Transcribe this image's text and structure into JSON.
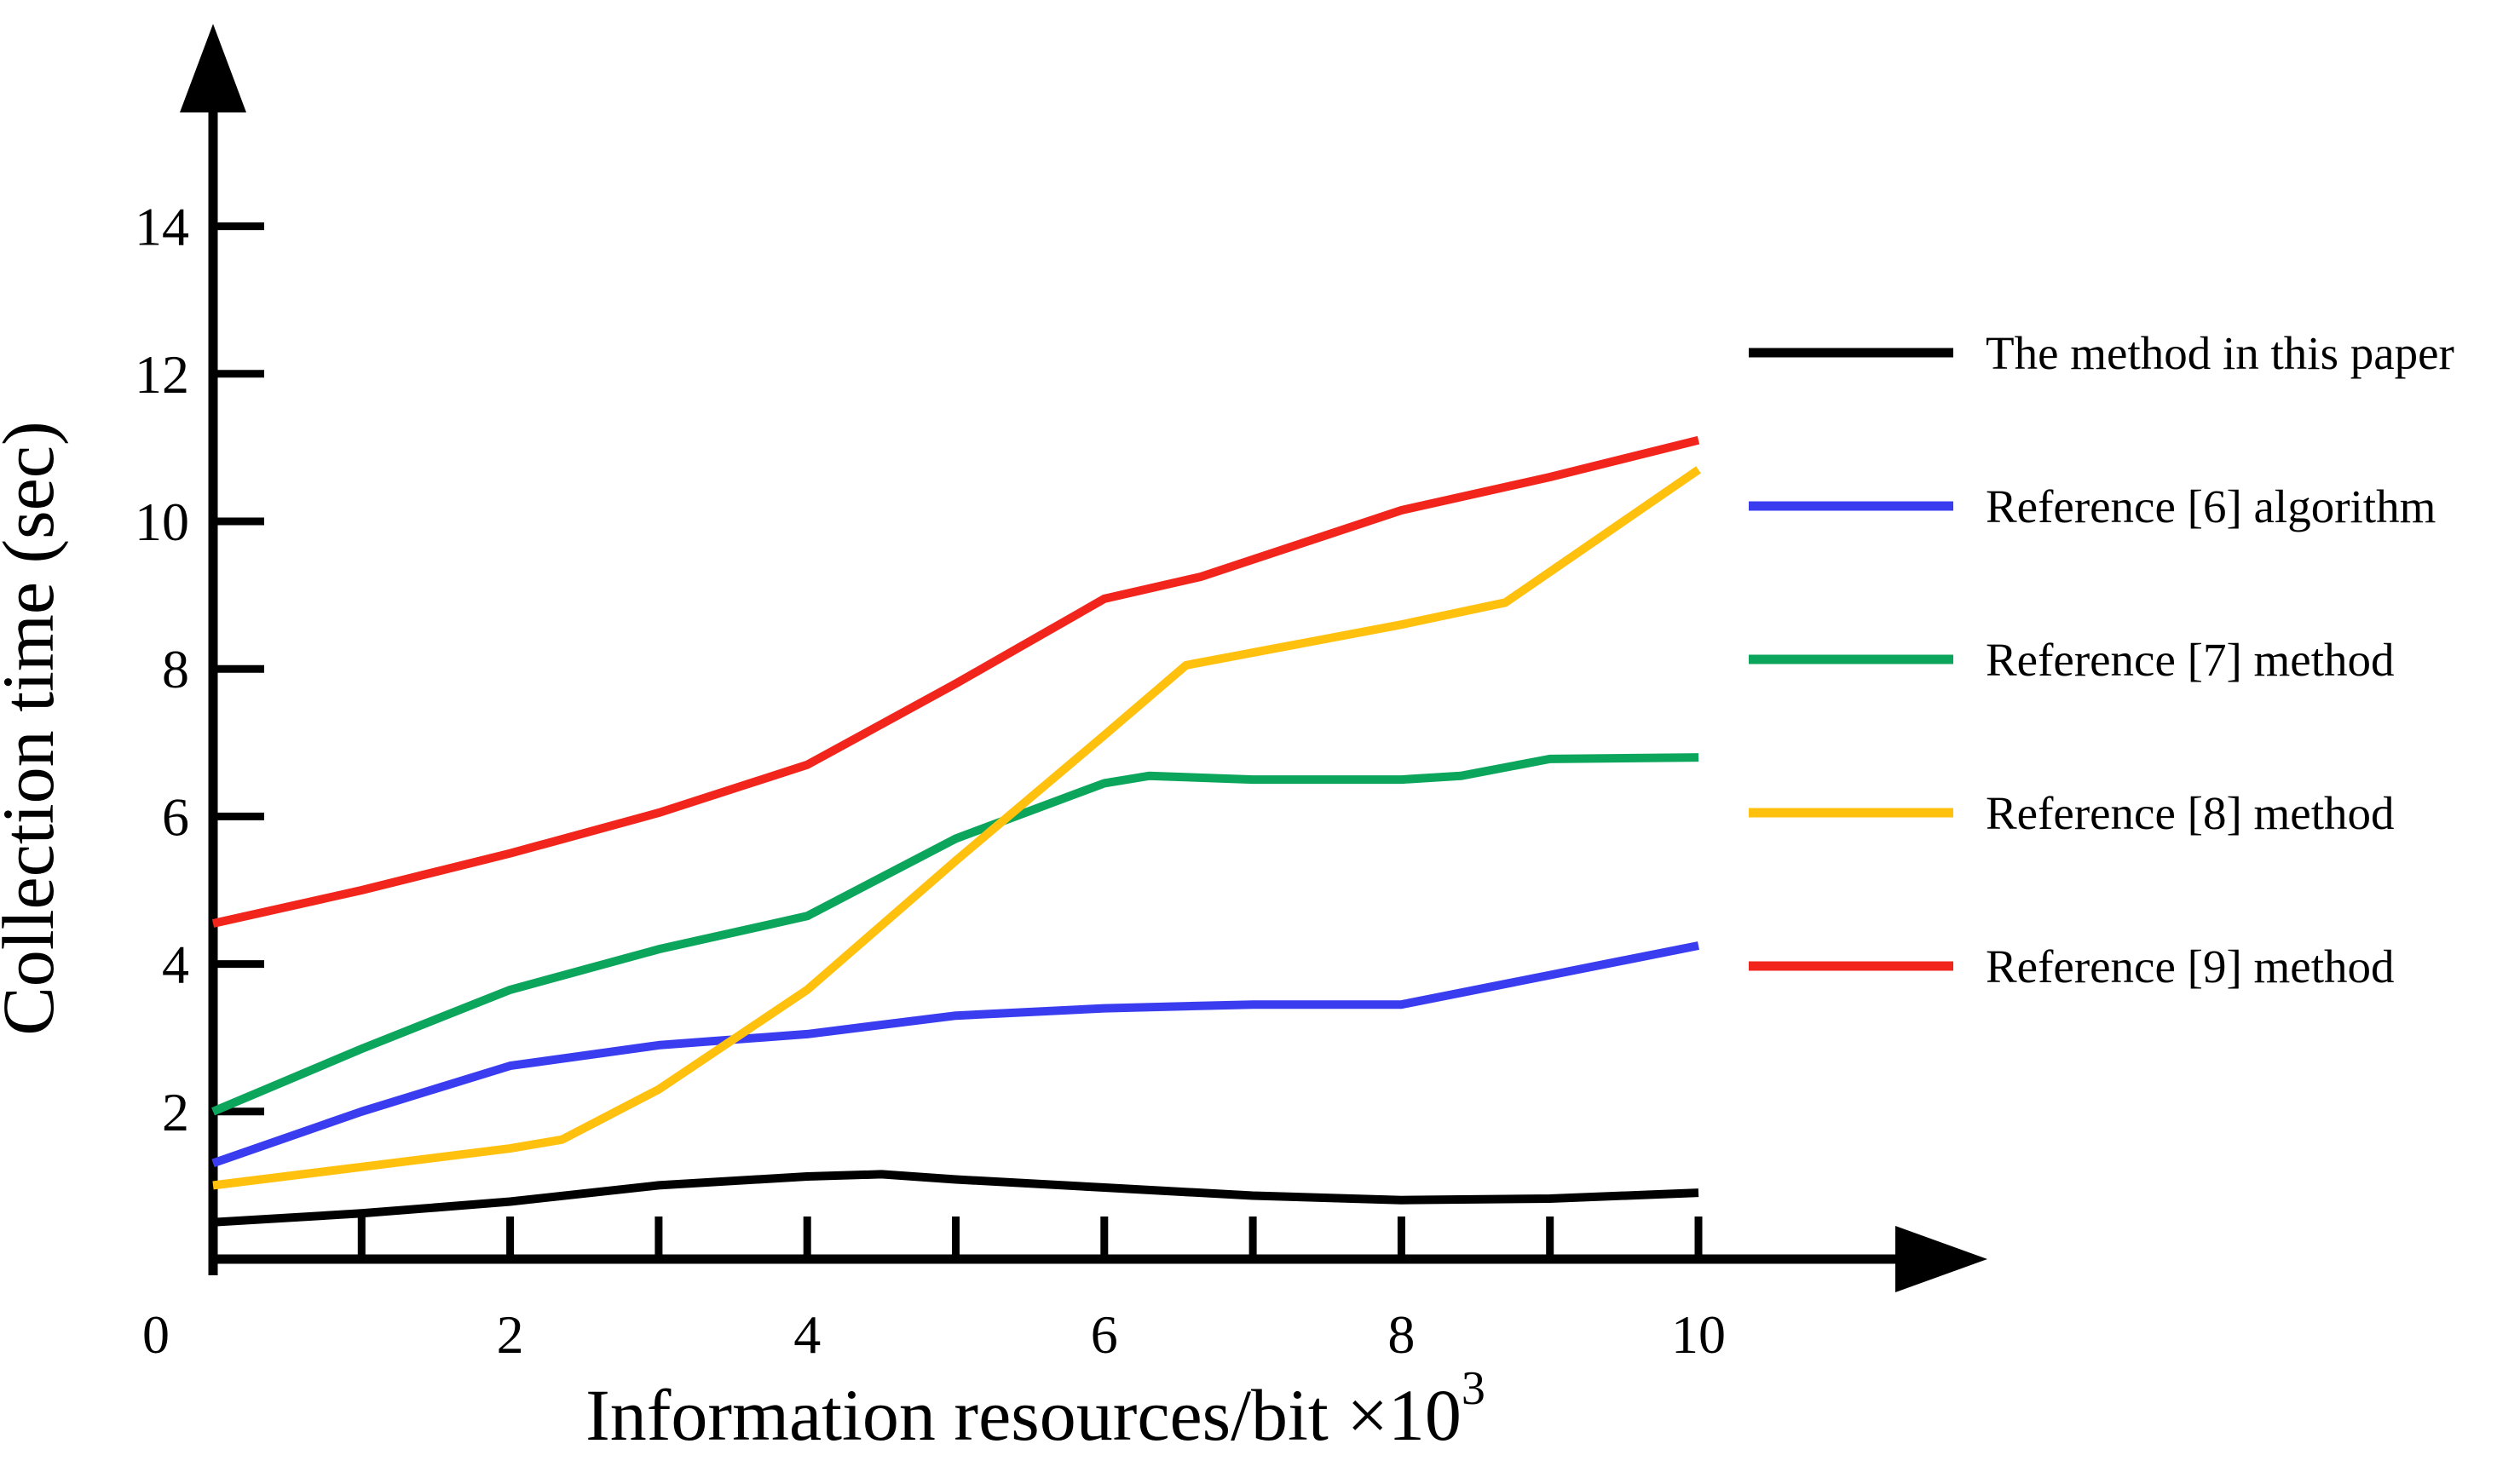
{
  "figure": {
    "background": "#ffffff",
    "axis_color": "#000000",
    "y_axis_title": "Collection time (sec)",
    "x_axis_title_main": "Information resources/bit ×10",
    "x_axis_title_exponent": "3"
  },
  "chart_data": {
    "type": "line",
    "title": "",
    "xlabel": "Information resources/bit ×10^3",
    "ylabel": "Collection time (sec)",
    "xlim": [
      0,
      11.9
    ],
    "ylim": [
      0,
      16.7
    ],
    "grid": false,
    "legend_position": "right-outside",
    "x_major_tick_labels": [
      0,
      2,
      4,
      6,
      8,
      10
    ],
    "x_minor_ticks": [
      1,
      2,
      3,
      4,
      5,
      6,
      7,
      8,
      9,
      10
    ],
    "y_ticks": [
      2,
      4,
      6,
      8,
      10,
      12,
      14
    ],
    "series": [
      {
        "name": "The method in this paper",
        "color": "#000000",
        "points": [
          [
            0,
            0.5
          ],
          [
            1,
            0.62
          ],
          [
            2,
            0.78
          ],
          [
            3,
            1.0
          ],
          [
            4,
            1.12
          ],
          [
            4.5,
            1.15
          ],
          [
            5,
            1.08
          ],
          [
            6,
            0.97
          ],
          [
            7,
            0.86
          ],
          [
            8,
            0.8
          ],
          [
            9,
            0.82
          ],
          [
            10,
            0.9
          ]
        ]
      },
      {
        "name": "Reference [6] algorithm",
        "color": "#3a3cf0",
        "points": [
          [
            0,
            1.3
          ],
          [
            1,
            2.0
          ],
          [
            2,
            2.62
          ],
          [
            3,
            2.9
          ],
          [
            4,
            3.05
          ],
          [
            5,
            3.3
          ],
          [
            6,
            3.4
          ],
          [
            7,
            3.45
          ],
          [
            8,
            3.45
          ],
          [
            9,
            3.85
          ],
          [
            10,
            4.25
          ]
        ]
      },
      {
        "name": "Reference [7] method",
        "color": "#0ca55c",
        "points": [
          [
            0,
            2.0
          ],
          [
            1,
            2.85
          ],
          [
            2,
            3.65
          ],
          [
            3,
            4.2
          ],
          [
            4,
            4.65
          ],
          [
            5,
            5.7
          ],
          [
            6,
            6.45
          ],
          [
            6.3,
            6.55
          ],
          [
            7,
            6.5
          ],
          [
            8,
            6.5
          ],
          [
            8.4,
            6.55
          ],
          [
            9,
            6.78
          ],
          [
            10,
            6.8
          ]
        ]
      },
      {
        "name": "Reference [8] method",
        "color": "#ffc10e",
        "points": [
          [
            0,
            1.0
          ],
          [
            1,
            1.25
          ],
          [
            2,
            1.5
          ],
          [
            2.35,
            1.62
          ],
          [
            3,
            2.3
          ],
          [
            4,
            3.65
          ],
          [
            5,
            5.4
          ],
          [
            6,
            7.1
          ],
          [
            6.55,
            8.05
          ],
          [
            7,
            8.22
          ],
          [
            8,
            8.6
          ],
          [
            8.7,
            8.9
          ],
          [
            10,
            10.7
          ]
        ]
      },
      {
        "name": "Reference [9] method",
        "color": "#f2251c",
        "points": [
          [
            0,
            4.55
          ],
          [
            1,
            5.0
          ],
          [
            2,
            5.5
          ],
          [
            3,
            6.05
          ],
          [
            4,
            6.7
          ],
          [
            5,
            7.8
          ],
          [
            6,
            8.95
          ],
          [
            6.65,
            9.25
          ],
          [
            8,
            10.15
          ],
          [
            9,
            10.6
          ],
          [
            10,
            11.1
          ]
        ]
      }
    ]
  }
}
